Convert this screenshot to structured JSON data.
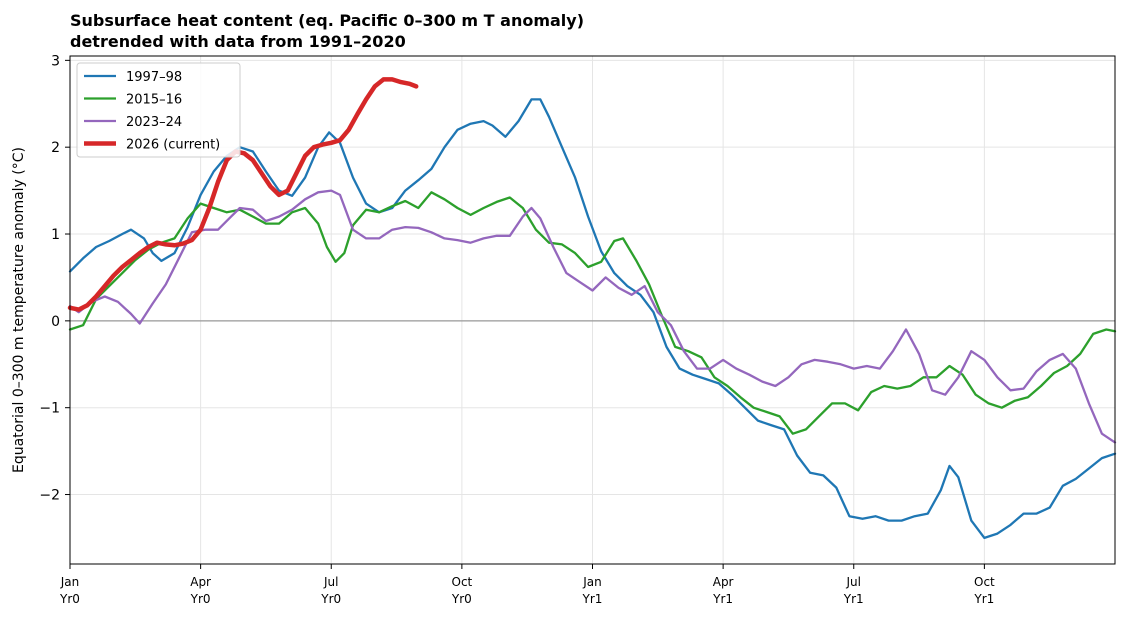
{
  "chart_data": {
    "type": "line",
    "title": "Subsurface heat content (eq. Pacific 0–300 m T anomaly)",
    "subtitle": "detrended with data from 1991–2020",
    "xlabel": "",
    "ylabel": "Equatorial 0–300 m temperature anomaly (°C)",
    "xlim": [
      0,
      24
    ],
    "ylim": [
      -2.8,
      3.05
    ],
    "yticks": [
      -2,
      -1,
      0,
      1,
      2,
      3
    ],
    "ytick_labels": [
      "−2",
      "−1",
      "0",
      "1",
      "2",
      "3"
    ],
    "xticks": [
      {
        "x": 0,
        "month": "Jan",
        "year": "Yr0"
      },
      {
        "x": 3,
        "month": "Apr",
        "year": "Yr0"
      },
      {
        "x": 6,
        "month": "Jul",
        "year": "Yr0"
      },
      {
        "x": 9,
        "month": "Oct",
        "year": "Yr0"
      },
      {
        "x": 12,
        "month": "Jan",
        "year": "Yr1"
      },
      {
        "x": 15,
        "month": "Apr",
        "year": "Yr1"
      },
      {
        "x": 18,
        "month": "Jul",
        "year": "Yr1"
      },
      {
        "x": 21,
        "month": "Oct",
        "year": "Yr1"
      }
    ],
    "grid": true,
    "zero_line": true,
    "legend_position": "top-left",
    "series": [
      {
        "name": "1997–98",
        "color": "#1f77b4",
        "width": 2.3,
        "points": [
          [
            0,
            0.57
          ],
          [
            0.3,
            0.72
          ],
          [
            0.6,
            0.85
          ],
          [
            0.9,
            0.92
          ],
          [
            1.2,
            1.0
          ],
          [
            1.4,
            1.05
          ],
          [
            1.7,
            0.95
          ],
          [
            1.9,
            0.78
          ],
          [
            2.1,
            0.69
          ],
          [
            2.4,
            0.78
          ],
          [
            2.7,
            1.08
          ],
          [
            3.0,
            1.45
          ],
          [
            3.3,
            1.72
          ],
          [
            3.6,
            1.9
          ],
          [
            3.9,
            2.0
          ],
          [
            4.2,
            1.95
          ],
          [
            4.5,
            1.72
          ],
          [
            4.8,
            1.5
          ],
          [
            5.1,
            1.44
          ],
          [
            5.4,
            1.65
          ],
          [
            5.7,
            2.0
          ],
          [
            5.95,
            2.17
          ],
          [
            6.2,
            2.05
          ],
          [
            6.5,
            1.65
          ],
          [
            6.8,
            1.35
          ],
          [
            7.1,
            1.25
          ],
          [
            7.4,
            1.3
          ],
          [
            7.7,
            1.5
          ],
          [
            8.0,
            1.62
          ],
          [
            8.3,
            1.75
          ],
          [
            8.6,
            2.0
          ],
          [
            8.9,
            2.2
          ],
          [
            9.2,
            2.27
          ],
          [
            9.5,
            2.3
          ],
          [
            9.7,
            2.25
          ],
          [
            10.0,
            2.12
          ],
          [
            10.3,
            2.3
          ],
          [
            10.6,
            2.55
          ],
          [
            10.8,
            2.55
          ],
          [
            11.0,
            2.35
          ],
          [
            11.3,
            2.0
          ],
          [
            11.6,
            1.65
          ],
          [
            11.9,
            1.2
          ],
          [
            12.2,
            0.8
          ],
          [
            12.5,
            0.55
          ],
          [
            12.8,
            0.4
          ],
          [
            13.1,
            0.3
          ],
          [
            13.4,
            0.1
          ],
          [
            13.7,
            -0.3
          ],
          [
            14.0,
            -0.55
          ],
          [
            14.3,
            -0.62
          ],
          [
            14.6,
            -0.67
          ],
          [
            14.9,
            -0.72
          ],
          [
            15.2,
            -0.85
          ],
          [
            15.5,
            -1.0
          ],
          [
            15.8,
            -1.15
          ],
          [
            16.1,
            -1.2
          ],
          [
            16.4,
            -1.25
          ],
          [
            16.7,
            -1.55
          ],
          [
            17.0,
            -1.75
          ],
          [
            17.3,
            -1.78
          ],
          [
            17.6,
            -1.92
          ],
          [
            17.9,
            -2.25
          ],
          [
            18.2,
            -2.28
          ],
          [
            18.5,
            -2.25
          ],
          [
            18.8,
            -2.3
          ],
          [
            19.1,
            -2.3
          ],
          [
            19.4,
            -2.25
          ],
          [
            19.7,
            -2.22
          ],
          [
            20.0,
            -1.95
          ],
          [
            20.2,
            -1.67
          ],
          [
            20.4,
            -1.8
          ],
          [
            20.7,
            -2.3
          ],
          [
            21.0,
            -2.5
          ],
          [
            21.3,
            -2.45
          ],
          [
            21.6,
            -2.35
          ],
          [
            21.9,
            -2.22
          ],
          [
            22.2,
            -2.22
          ],
          [
            22.5,
            -2.15
          ],
          [
            22.8,
            -1.9
          ],
          [
            23.1,
            -1.82
          ],
          [
            23.4,
            -1.7
          ],
          [
            23.7,
            -1.58
          ],
          [
            24.0,
            -1.53
          ]
        ]
      },
      {
        "name": "2015–16",
        "color": "#2ca02c",
        "width": 2.3,
        "points": [
          [
            0,
            -0.1
          ],
          [
            0.3,
            -0.05
          ],
          [
            0.6,
            0.25
          ],
          [
            0.9,
            0.4
          ],
          [
            1.2,
            0.55
          ],
          [
            1.5,
            0.7
          ],
          [
            1.8,
            0.82
          ],
          [
            2.1,
            0.9
          ],
          [
            2.4,
            0.95
          ],
          [
            2.7,
            1.18
          ],
          [
            3.0,
            1.35
          ],
          [
            3.3,
            1.3
          ],
          [
            3.6,
            1.25
          ],
          [
            3.9,
            1.28
          ],
          [
            4.2,
            1.2
          ],
          [
            4.5,
            1.12
          ],
          [
            4.8,
            1.12
          ],
          [
            5.1,
            1.25
          ],
          [
            5.4,
            1.3
          ],
          [
            5.7,
            1.12
          ],
          [
            5.9,
            0.85
          ],
          [
            6.1,
            0.68
          ],
          [
            6.3,
            0.78
          ],
          [
            6.5,
            1.1
          ],
          [
            6.8,
            1.28
          ],
          [
            7.1,
            1.25
          ],
          [
            7.4,
            1.32
          ],
          [
            7.7,
            1.38
          ],
          [
            8.0,
            1.3
          ],
          [
            8.3,
            1.48
          ],
          [
            8.6,
            1.4
          ],
          [
            8.9,
            1.3
          ],
          [
            9.2,
            1.22
          ],
          [
            9.5,
            1.3
          ],
          [
            9.8,
            1.37
          ],
          [
            10.1,
            1.42
          ],
          [
            10.4,
            1.3
          ],
          [
            10.7,
            1.05
          ],
          [
            11.0,
            0.9
          ],
          [
            11.3,
            0.88
          ],
          [
            11.6,
            0.78
          ],
          [
            11.9,
            0.62
          ],
          [
            12.2,
            0.68
          ],
          [
            12.5,
            0.92
          ],
          [
            12.7,
            0.95
          ],
          [
            13.0,
            0.7
          ],
          [
            13.3,
            0.42
          ],
          [
            13.6,
            0.05
          ],
          [
            13.9,
            -0.3
          ],
          [
            14.2,
            -0.35
          ],
          [
            14.5,
            -0.42
          ],
          [
            14.8,
            -0.65
          ],
          [
            15.1,
            -0.75
          ],
          [
            15.4,
            -0.88
          ],
          [
            15.7,
            -1.0
          ],
          [
            16.0,
            -1.05
          ],
          [
            16.3,
            -1.1
          ],
          [
            16.6,
            -1.3
          ],
          [
            16.9,
            -1.25
          ],
          [
            17.2,
            -1.1
          ],
          [
            17.5,
            -0.95
          ],
          [
            17.8,
            -0.95
          ],
          [
            18.1,
            -1.03
          ],
          [
            18.4,
            -0.82
          ],
          [
            18.7,
            -0.75
          ],
          [
            19.0,
            -0.78
          ],
          [
            19.3,
            -0.75
          ],
          [
            19.6,
            -0.65
          ],
          [
            19.9,
            -0.65
          ],
          [
            20.2,
            -0.52
          ],
          [
            20.5,
            -0.62
          ],
          [
            20.8,
            -0.85
          ],
          [
            21.1,
            -0.95
          ],
          [
            21.4,
            -1.0
          ],
          [
            21.7,
            -0.92
          ],
          [
            22.0,
            -0.88
          ],
          [
            22.3,
            -0.75
          ],
          [
            22.6,
            -0.6
          ],
          [
            22.9,
            -0.52
          ],
          [
            23.2,
            -0.38
          ],
          [
            23.5,
            -0.15
          ],
          [
            23.8,
            -0.1
          ],
          [
            24.0,
            -0.12
          ]
        ]
      },
      {
        "name": "2023–24",
        "color": "#9467bd",
        "width": 2.3,
        "points": [
          [
            0,
            0.17
          ],
          [
            0.2,
            0.1
          ],
          [
            0.5,
            0.22
          ],
          [
            0.8,
            0.28
          ],
          [
            1.1,
            0.22
          ],
          [
            1.4,
            0.08
          ],
          [
            1.6,
            -0.03
          ],
          [
            1.9,
            0.2
          ],
          [
            2.2,
            0.42
          ],
          [
            2.5,
            0.72
          ],
          [
            2.8,
            1.02
          ],
          [
            3.1,
            1.05
          ],
          [
            3.4,
            1.05
          ],
          [
            3.7,
            1.2
          ],
          [
            3.9,
            1.3
          ],
          [
            4.2,
            1.28
          ],
          [
            4.5,
            1.15
          ],
          [
            4.8,
            1.2
          ],
          [
            5.1,
            1.28
          ],
          [
            5.4,
            1.4
          ],
          [
            5.7,
            1.48
          ],
          [
            6.0,
            1.5
          ],
          [
            6.2,
            1.45
          ],
          [
            6.5,
            1.05
          ],
          [
            6.8,
            0.95
          ],
          [
            7.1,
            0.95
          ],
          [
            7.4,
            1.05
          ],
          [
            7.7,
            1.08
          ],
          [
            8.0,
            1.07
          ],
          [
            8.3,
            1.02
          ],
          [
            8.6,
            0.95
          ],
          [
            8.9,
            0.93
          ],
          [
            9.2,
            0.9
          ],
          [
            9.5,
            0.95
          ],
          [
            9.8,
            0.98
          ],
          [
            10.1,
            0.98
          ],
          [
            10.4,
            1.2
          ],
          [
            10.6,
            1.3
          ],
          [
            10.8,
            1.18
          ],
          [
            11.1,
            0.85
          ],
          [
            11.4,
            0.55
          ],
          [
            11.7,
            0.45
          ],
          [
            12.0,
            0.35
          ],
          [
            12.3,
            0.5
          ],
          [
            12.6,
            0.38
          ],
          [
            12.9,
            0.3
          ],
          [
            13.2,
            0.4
          ],
          [
            13.5,
            0.1
          ],
          [
            13.8,
            -0.05
          ],
          [
            14.1,
            -0.35
          ],
          [
            14.4,
            -0.55
          ],
          [
            14.7,
            -0.55
          ],
          [
            15.0,
            -0.45
          ],
          [
            15.3,
            -0.55
          ],
          [
            15.6,
            -0.62
          ],
          [
            15.9,
            -0.7
          ],
          [
            16.2,
            -0.75
          ],
          [
            16.5,
            -0.65
          ],
          [
            16.8,
            -0.5
          ],
          [
            17.1,
            -0.45
          ],
          [
            17.4,
            -0.47
          ],
          [
            17.7,
            -0.5
          ],
          [
            18.0,
            -0.55
          ],
          [
            18.3,
            -0.52
          ],
          [
            18.6,
            -0.55
          ],
          [
            18.9,
            -0.35
          ],
          [
            19.2,
            -0.1
          ],
          [
            19.5,
            -0.38
          ],
          [
            19.8,
            -0.8
          ],
          [
            20.1,
            -0.85
          ],
          [
            20.4,
            -0.65
          ],
          [
            20.7,
            -0.35
          ],
          [
            21.0,
            -0.45
          ],
          [
            21.3,
            -0.65
          ],
          [
            21.6,
            -0.8
          ],
          [
            21.9,
            -0.78
          ],
          [
            22.2,
            -0.58
          ],
          [
            22.5,
            -0.45
          ],
          [
            22.8,
            -0.38
          ],
          [
            23.1,
            -0.55
          ],
          [
            23.4,
            -0.95
          ],
          [
            23.7,
            -1.3
          ],
          [
            24.0,
            -1.4
          ]
        ]
      },
      {
        "name": "2026 (current)",
        "color": "#d62728",
        "width": 4.5,
        "points": [
          [
            0,
            0.15
          ],
          [
            0.2,
            0.13
          ],
          [
            0.4,
            0.18
          ],
          [
            0.6,
            0.28
          ],
          [
            0.8,
            0.4
          ],
          [
            1.0,
            0.52
          ],
          [
            1.2,
            0.62
          ],
          [
            1.4,
            0.7
          ],
          [
            1.6,
            0.78
          ],
          [
            1.8,
            0.85
          ],
          [
            2.0,
            0.9
          ],
          [
            2.2,
            0.88
          ],
          [
            2.4,
            0.87
          ],
          [
            2.6,
            0.89
          ],
          [
            2.8,
            0.93
          ],
          [
            3.0,
            1.05
          ],
          [
            3.2,
            1.3
          ],
          [
            3.4,
            1.6
          ],
          [
            3.6,
            1.85
          ],
          [
            3.8,
            1.95
          ],
          [
            4.0,
            1.93
          ],
          [
            4.2,
            1.85
          ],
          [
            4.4,
            1.7
          ],
          [
            4.6,
            1.55
          ],
          [
            4.8,
            1.45
          ],
          [
            5.0,
            1.5
          ],
          [
            5.2,
            1.7
          ],
          [
            5.4,
            1.9
          ],
          [
            5.6,
            2.0
          ],
          [
            5.8,
            2.03
          ],
          [
            6.0,
            2.05
          ],
          [
            6.2,
            2.08
          ],
          [
            6.4,
            2.2
          ],
          [
            6.6,
            2.38
          ],
          [
            6.8,
            2.55
          ],
          [
            7.0,
            2.7
          ],
          [
            7.2,
            2.78
          ],
          [
            7.4,
            2.78
          ],
          [
            7.6,
            2.75
          ],
          [
            7.8,
            2.73
          ],
          [
            7.95,
            2.7
          ]
        ]
      }
    ]
  }
}
